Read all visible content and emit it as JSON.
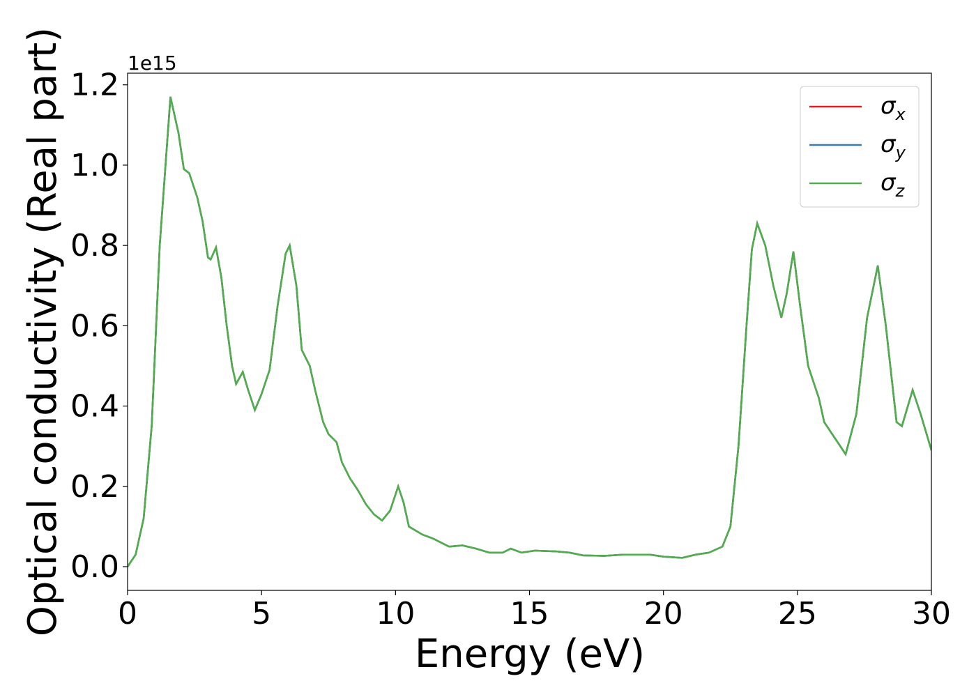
{
  "chart_data": {
    "type": "line",
    "x_label": "Energy (eV)",
    "y_label": "Optical conductivity (Real part)",
    "y_offset_label": "1e15",
    "x": [
      0,
      0.3,
      0.6,
      0.9,
      1.2,
      1.6,
      1.9,
      2.1,
      2.3,
      2.6,
      2.8,
      3.0,
      3.1,
      3.3,
      3.5,
      3.7,
      3.9,
      4.05,
      4.3,
      4.5,
      4.75,
      5.0,
      5.3,
      5.6,
      5.9,
      6.05,
      6.3,
      6.5,
      6.8,
      7.0,
      7.3,
      7.5,
      7.8,
      8.0,
      8.3,
      8.6,
      8.9,
      9.2,
      9.5,
      9.8,
      10.1,
      10.3,
      10.5,
      11.0,
      11.4,
      12.0,
      12.5,
      13.0,
      13.5,
      14.0,
      14.3,
      14.7,
      15.2,
      16.0,
      16.5,
      17.0,
      17.8,
      18.5,
      19.5,
      20.0,
      20.7,
      21.2,
      21.7,
      22.2,
      22.5,
      22.8,
      23.1,
      23.3,
      23.5,
      23.8,
      24.1,
      24.4,
      24.6,
      24.85,
      25.1,
      25.4,
      25.8,
      26.0,
      26.3,
      26.8,
      27.2,
      27.6,
      28.0,
      28.3,
      28.7,
      28.9,
      29.3,
      29.6,
      30.0
    ],
    "series": [
      {
        "name": "σx",
        "color": "#e41a1c",
        "values": [
          0,
          0.03,
          0.12,
          0.35,
          0.8,
          1.17,
          1.08,
          0.99,
          0.98,
          0.92,
          0.86,
          0.77,
          0.765,
          0.795,
          0.72,
          0.6,
          0.5,
          0.455,
          0.485,
          0.44,
          0.39,
          0.43,
          0.49,
          0.65,
          0.78,
          0.8,
          0.7,
          0.54,
          0.5,
          0.44,
          0.36,
          0.33,
          0.31,
          0.26,
          0.22,
          0.19,
          0.155,
          0.13,
          0.115,
          0.14,
          0.2,
          0.16,
          0.1,
          0.08,
          0.07,
          0.05,
          0.053,
          0.045,
          0.035,
          0.035,
          0.045,
          0.035,
          0.04,
          0.038,
          0.035,
          0.028,
          0.027,
          0.03,
          0.03,
          0.025,
          0.022,
          0.03,
          0.035,
          0.05,
          0.1,
          0.3,
          0.6,
          0.79,
          0.855,
          0.8,
          0.7,
          0.62,
          0.68,
          0.785,
          0.65,
          0.5,
          0.42,
          0.36,
          0.33,
          0.28,
          0.38,
          0.62,
          0.75,
          0.6,
          0.36,
          0.35,
          0.44,
          0.38,
          0.29
        ]
      },
      {
        "name": "σy",
        "color": "#377eb8",
        "values": [
          0,
          0.03,
          0.12,
          0.35,
          0.8,
          1.17,
          1.08,
          0.99,
          0.98,
          0.92,
          0.86,
          0.77,
          0.765,
          0.795,
          0.72,
          0.6,
          0.5,
          0.455,
          0.485,
          0.44,
          0.39,
          0.43,
          0.49,
          0.65,
          0.78,
          0.8,
          0.7,
          0.54,
          0.5,
          0.44,
          0.36,
          0.33,
          0.31,
          0.26,
          0.22,
          0.19,
          0.155,
          0.13,
          0.115,
          0.14,
          0.2,
          0.16,
          0.1,
          0.08,
          0.07,
          0.05,
          0.053,
          0.045,
          0.035,
          0.035,
          0.045,
          0.035,
          0.04,
          0.038,
          0.035,
          0.028,
          0.027,
          0.03,
          0.03,
          0.025,
          0.022,
          0.03,
          0.035,
          0.05,
          0.1,
          0.3,
          0.6,
          0.79,
          0.855,
          0.8,
          0.7,
          0.62,
          0.68,
          0.785,
          0.65,
          0.5,
          0.42,
          0.36,
          0.33,
          0.28,
          0.38,
          0.62,
          0.75,
          0.6,
          0.36,
          0.35,
          0.44,
          0.38,
          0.29
        ]
      },
      {
        "name": "σz",
        "color": "#4daf4a",
        "values": [
          0,
          0.03,
          0.12,
          0.35,
          0.8,
          1.17,
          1.08,
          0.99,
          0.98,
          0.92,
          0.86,
          0.77,
          0.765,
          0.795,
          0.72,
          0.6,
          0.5,
          0.455,
          0.485,
          0.44,
          0.39,
          0.43,
          0.49,
          0.65,
          0.78,
          0.8,
          0.7,
          0.54,
          0.5,
          0.44,
          0.36,
          0.33,
          0.31,
          0.26,
          0.22,
          0.19,
          0.155,
          0.13,
          0.115,
          0.14,
          0.2,
          0.16,
          0.1,
          0.08,
          0.07,
          0.05,
          0.053,
          0.045,
          0.035,
          0.035,
          0.045,
          0.035,
          0.04,
          0.038,
          0.035,
          0.028,
          0.027,
          0.03,
          0.03,
          0.025,
          0.022,
          0.03,
          0.035,
          0.05,
          0.1,
          0.3,
          0.6,
          0.79,
          0.855,
          0.8,
          0.7,
          0.62,
          0.68,
          0.785,
          0.65,
          0.5,
          0.42,
          0.36,
          0.33,
          0.28,
          0.38,
          0.62,
          0.75,
          0.6,
          0.36,
          0.35,
          0.44,
          0.38,
          0.29
        ]
      }
    ],
    "xlim": [
      0,
      30
    ],
    "xticks": [
      0,
      5,
      10,
      15,
      20,
      25,
      30
    ],
    "ylim": [
      -0.059,
      1.229
    ],
    "yticks": [
      {
        "value": 0,
        "label": "0.0"
      },
      0.2,
      0.4,
      0.6,
      0.8,
      {
        "value": 1,
        "label": "1.0"
      },
      1.2
    ],
    "grid": false,
    "legend": "upper right"
  }
}
